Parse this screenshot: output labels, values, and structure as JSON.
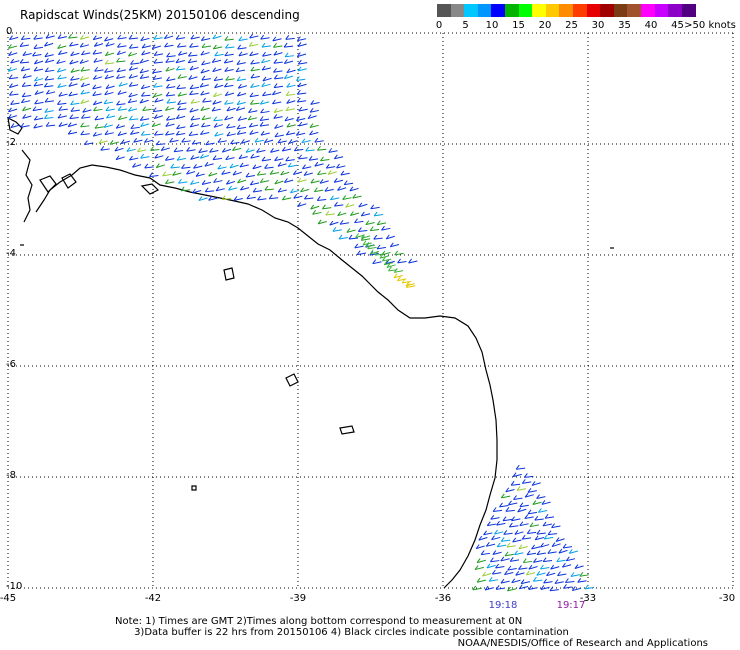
{
  "title": "Rapidscat Winds(25KM) 20150106 descending",
  "legend": {
    "ticks": [
      "0",
      "5",
      "10",
      "15",
      "20",
      "25",
      "30",
      "35",
      "40",
      "45",
      ">50 knots"
    ],
    "colors": [
      "#555555",
      "#888888",
      "#00c8ff",
      "#0096ff",
      "#0000ff",
      "#00b400",
      "#00ff00",
      "#ffff00",
      "#ffc800",
      "#ff8c00",
      "#ff3c00",
      "#e60000",
      "#a00000",
      "#7a3c14",
      "#a0522d",
      "#ff00ff",
      "#c800ff",
      "#8c00c8",
      "#500080"
    ]
  },
  "map": {
    "lat_labels": [
      "0",
      "-2",
      "-4",
      "-6",
      "-8",
      "-10"
    ],
    "lon_labels": [
      "-45",
      "-42",
      "-39",
      "-36",
      "-33",
      "-30"
    ],
    "pass_times": [
      {
        "text": "19:18",
        "color": "#3c3cc8"
      },
      {
        "text": "19:17",
        "color": "#8c1ea0"
      }
    ]
  },
  "notes": "Note: 1) Times are GMT 2)Times along bottom correspond to measurement at 0N\n      3)Data buffer is 22 hrs from 20150106 4) Black circles indicate possible contamination",
  "credit": "NOAA/NESDIS/Office of Research and Applications"
}
